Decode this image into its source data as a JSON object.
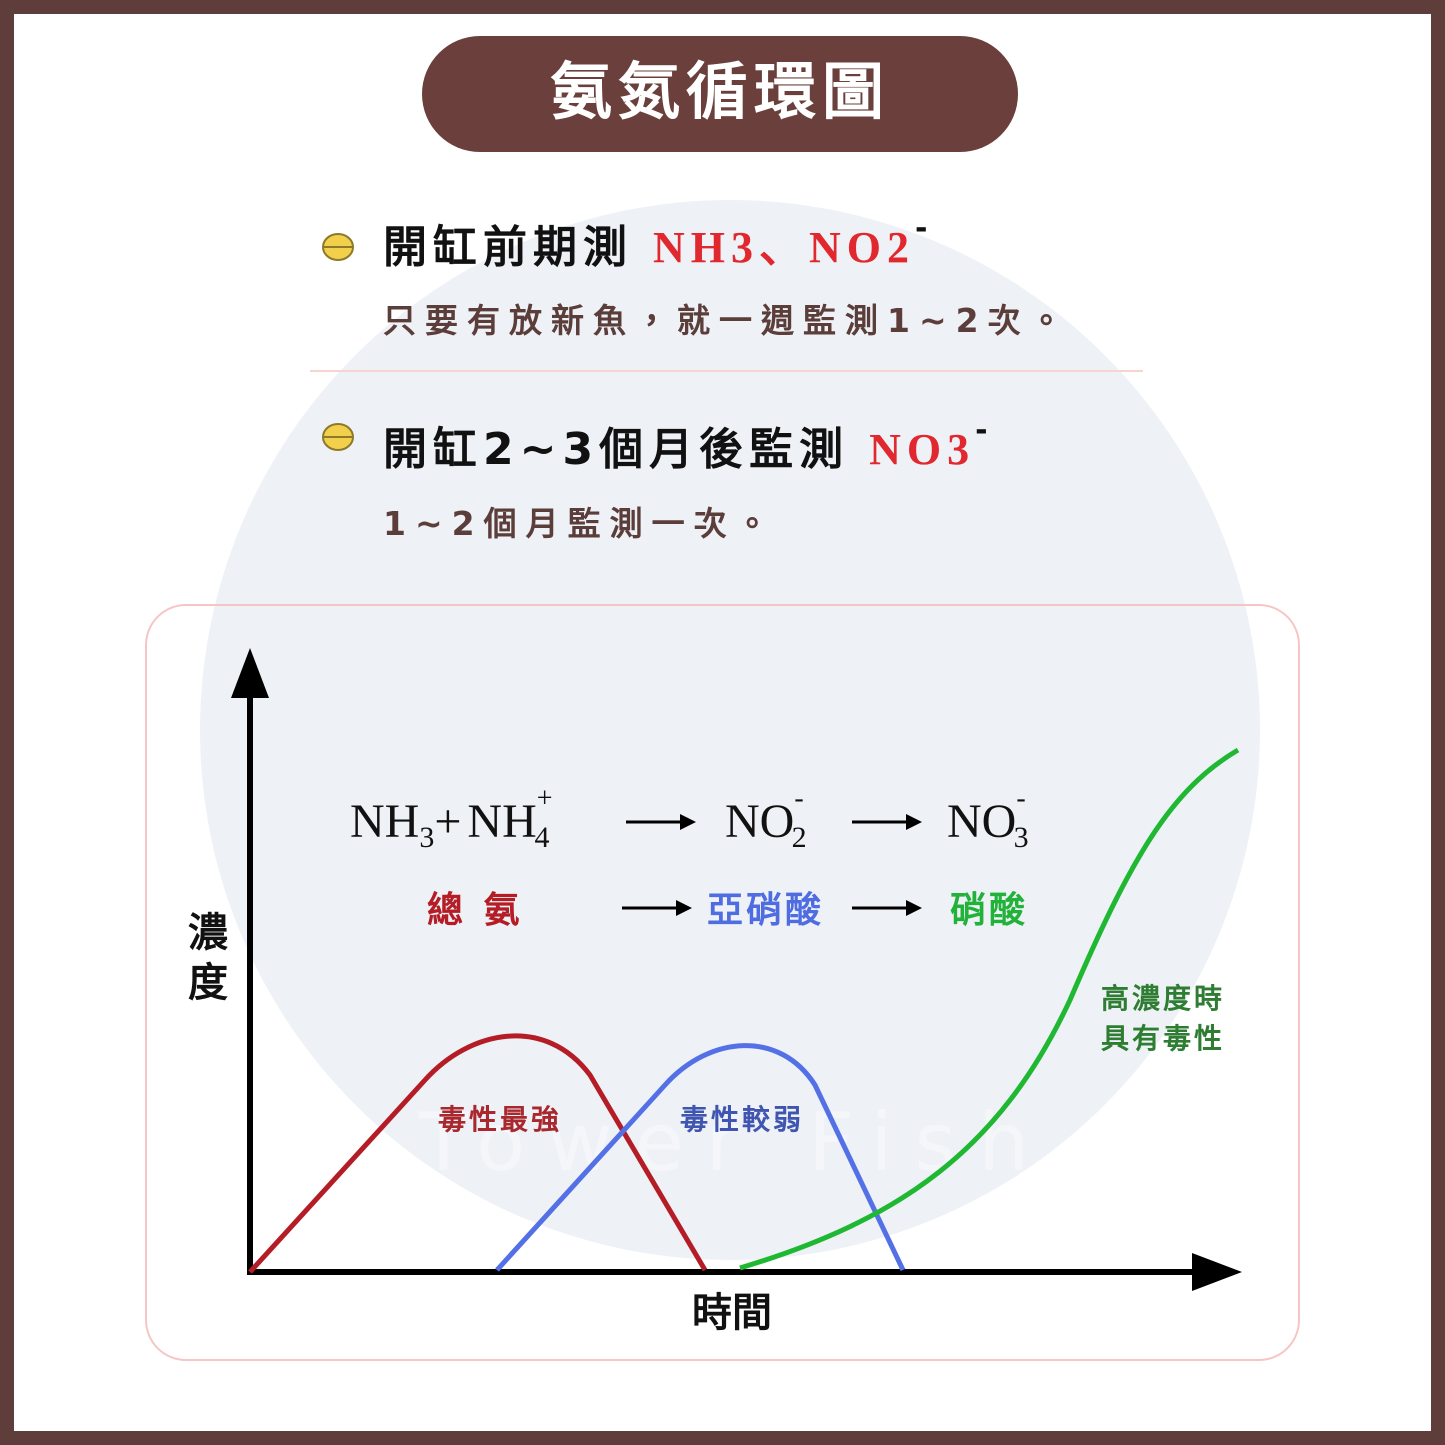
{
  "title": "氨氮循環圖",
  "sections": [
    {
      "heading": "開缸前期測",
      "highlight": "NH3、NO2",
      "superscript": "-",
      "body": "只要有放新魚，就一週監測1~2次。"
    },
    {
      "heading": "開缸2~3個月後監測",
      "highlight": "NO3",
      "superscript": "-",
      "body": "1~2個月監測一次。"
    }
  ],
  "diagram": {
    "y_axis_label": [
      "濃",
      "度"
    ],
    "x_axis_label": "時間",
    "formula": {
      "terms": [
        {
          "base": "NH",
          "sub": "3"
        },
        {
          "base": "NH",
          "sub": "4",
          "sup": "+"
        },
        {
          "base": "NO",
          "sub": "2",
          "sup": "-"
        },
        {
          "base": "NO",
          "sub": "3",
          "sup": "-"
        }
      ],
      "plus": "+"
    },
    "stages": [
      "總 氨",
      "亞硝酸",
      "硝酸"
    ],
    "annotations": {
      "ammonia": "毒性最強",
      "nitrite": "毒性較弱",
      "nitrate": [
        "高濃度時",
        "具有毒性"
      ]
    },
    "watermark": "Tower Fish"
  }
}
